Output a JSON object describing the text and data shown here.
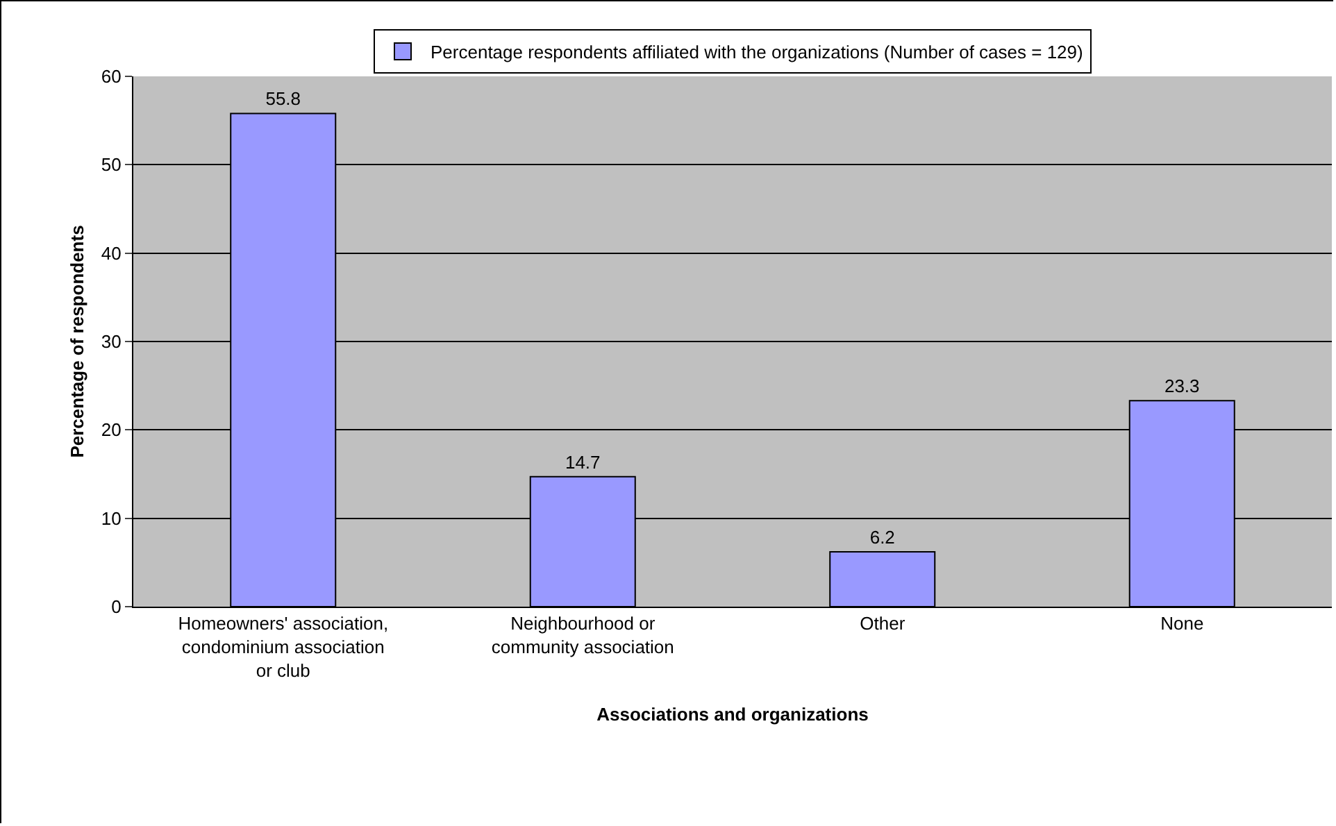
{
  "chart_data": {
    "type": "bar",
    "xlabel": "Associations and organizations",
    "ylabel": "Percentage of respondents",
    "categories": [
      "Homeowners' association, condominium association or club",
      "Neighbourhood or community association",
      "Other",
      "None"
    ],
    "series": [
      {
        "name": "Percentage respondents affiliated with the organizations (Number of cases = 129)",
        "color": "#9999ff",
        "values": [
          55.8,
          14.7,
          6.2,
          23.3
        ]
      }
    ],
    "ylim": [
      0,
      60
    ],
    "yticks": [
      0,
      10,
      20,
      30,
      40,
      50,
      60
    ],
    "grid": "y",
    "legend": "top",
    "data_labels": true
  }
}
